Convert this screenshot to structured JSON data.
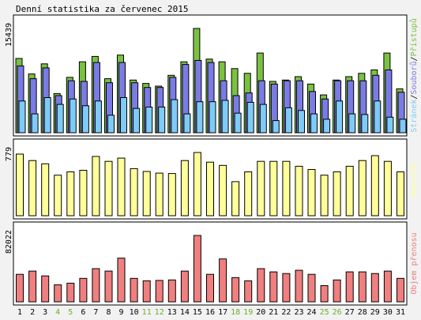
{
  "title": "Denní statistika za červenec 2015",
  "colors": {
    "bg": "#f2f2f2",
    "panel": "#ffffff",
    "hits": "#7ac142",
    "files": "#7b7be6",
    "pages": "#7ecbf7",
    "visits": "#ffff99",
    "kbytes": "#f07f7f",
    "weekend_text": "#6cad2e"
  },
  "chart_data": [
    {
      "type": "bar",
      "name": "hits-files-pages",
      "ymax_label": "15439",
      "ylim": [
        0,
        15439
      ],
      "legend_labels": {
        "pages": "Stránek",
        "files": "Souborů",
        "hits": "Přístupů"
      },
      "legend_sep": "/",
      "categories": [
        "1",
        "2",
        "3",
        "4",
        "5",
        "6",
        "7",
        "8",
        "9",
        "10",
        "11",
        "12",
        "13",
        "14",
        "15",
        "16",
        "17",
        "18",
        "19",
        "20",
        "21",
        "22",
        "23",
        "24",
        "25",
        "26",
        "27",
        "28",
        "29",
        "30",
        "31"
      ],
      "weekend": [
        4,
        5,
        11,
        12,
        18,
        19,
        25,
        26
      ],
      "series": [
        {
          "name": "Přístupů",
          "key": "hits",
          "values": [
            11000,
            8700,
            10200,
            5800,
            8200,
            10500,
            11300,
            8000,
            11500,
            7800,
            7300,
            6900,
            8500,
            10500,
            15439,
            10900,
            10500,
            9500,
            8800,
            11800,
            7600,
            7800,
            8300,
            7200,
            5600,
            7800,
            8300,
            8800,
            9300,
            11800,
            6500
          ]
        },
        {
          "name": "Souborů",
          "key": "files",
          "values": [
            9900,
            8000,
            9600,
            5500,
            7700,
            7600,
            10400,
            7400,
            10400,
            7400,
            6700,
            6700,
            8200,
            10100,
            10700,
            10400,
            7700,
            5500,
            5900,
            7700,
            7200,
            7700,
            7700,
            6100,
            5000,
            7700,
            7700,
            7700,
            8500,
            9300,
            6000
          ]
        },
        {
          "name": "Stránek",
          "key": "pages",
          "values": [
            4700,
            2800,
            5200,
            4200,
            5000,
            4000,
            4700,
            2600,
            5200,
            3600,
            3800,
            3800,
            4900,
            2800,
            4600,
            4600,
            4800,
            2900,
            4500,
            4200,
            1800,
            3700,
            3300,
            2800,
            2000,
            4700,
            2800,
            2700,
            4700,
            2300,
            2000
          ]
        }
      ]
    },
    {
      "type": "bar",
      "name": "visits",
      "ymax_label": "779",
      "ylim": [
        0,
        779
      ],
      "legend_labels": {
        "visits": "Návštěv"
      },
      "series": [
        {
          "name": "Návštěv",
          "key": "visits",
          "values": [
            760,
            680,
            640,
            500,
            540,
            560,
            730,
            670,
            710,
            580,
            545,
            525,
            520,
            680,
            779,
            660,
            620,
            420,
            540,
            670,
            670,
            670,
            610,
            570,
            500,
            540,
            610,
            680,
            740,
            670,
            540
          ]
        }
      ]
    },
    {
      "type": "bar",
      "name": "kbytes",
      "ymax_label": "82022",
      "ylim": [
        0,
        82022
      ],
      "legend_labels": {
        "kbytes": "Objem přenosu"
      },
      "series": [
        {
          "name": "Objem přenosu",
          "key": "kbytes",
          "values": [
            34000,
            38000,
            32000,
            21000,
            23000,
            29000,
            41000,
            38000,
            54000,
            29000,
            26000,
            26500,
            27000,
            38000,
            82022,
            34000,
            53000,
            30000,
            26000,
            41000,
            37000,
            35000,
            39000,
            34000,
            20000,
            27000,
            37000,
            37000,
            35000,
            38000,
            29000
          ]
        }
      ]
    }
  ]
}
